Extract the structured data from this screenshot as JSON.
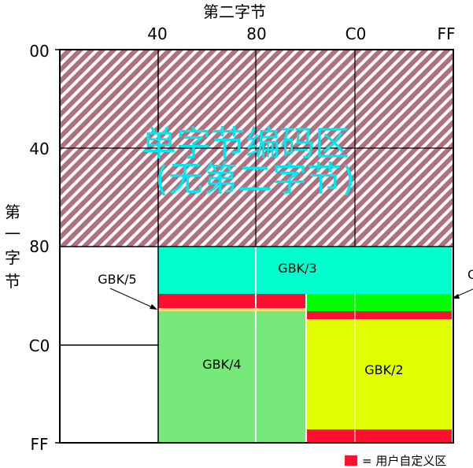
{
  "axis_top": {
    "title": "第二字节",
    "ticks": [
      "40",
      "80",
      "C0",
      "FF"
    ]
  },
  "axis_left": {
    "title_chars": [
      "第",
      "一",
      "字",
      "节"
    ],
    "ticks": [
      "00",
      "40",
      "80",
      "C0",
      "FF"
    ]
  },
  "single_byte": {
    "line1": "单字节编码区",
    "line2": "(无第二字节)"
  },
  "regions": {
    "gbk1": "G",
    "gbk2": "GBK/2",
    "gbk3": "GBK/3",
    "gbk4": "GBK/4",
    "gbk5": "GBK/5"
  },
  "legend": {
    "label": "= 用户自定义区"
  },
  "colors": {
    "single_byte_stripe_a": "#b07080",
    "single_byte_stripe_b": "#ffffff",
    "gbk3": "#00ffcc",
    "gbk4": "#77e87a",
    "gbk2": "#e2ff00",
    "gbk1": "#00ff00",
    "user_defined": "#ff1030",
    "gbk5_strip": "#ffe070"
  }
}
